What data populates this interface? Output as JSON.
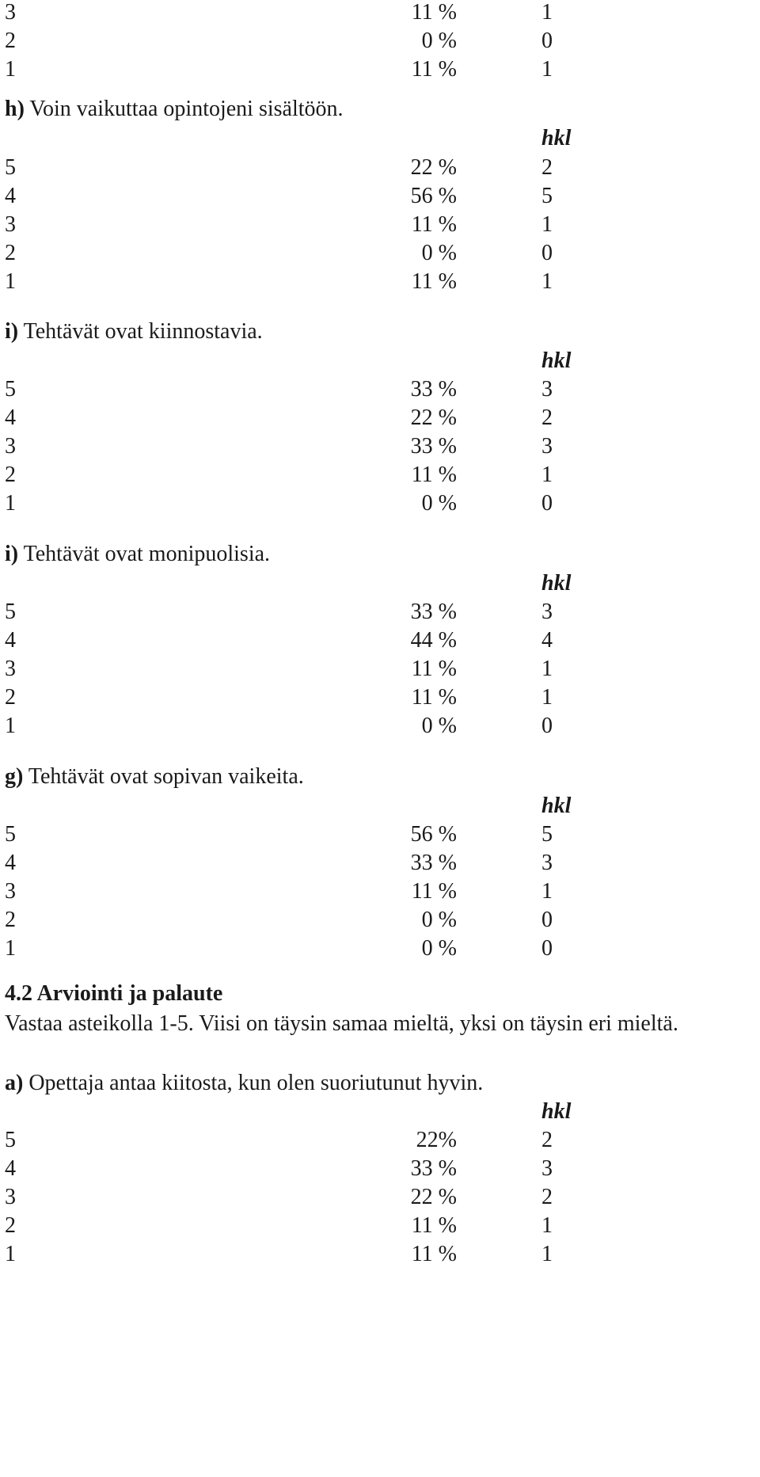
{
  "top_rows": [
    {
      "scale": "3",
      "pct": "11 %",
      "count": "1"
    },
    {
      "scale": "2",
      "pct": "0 %",
      "count": "0"
    },
    {
      "scale": "1",
      "pct": "11 %",
      "count": "1"
    }
  ],
  "questions": [
    {
      "letter": "h)",
      "text": "Voin vaikuttaa opintojeni sisältöön.",
      "hkl": "hkl",
      "rows": [
        {
          "scale": "5",
          "pct": "22 %",
          "count": "2"
        },
        {
          "scale": "4",
          "pct": "56 %",
          "count": "5"
        },
        {
          "scale": "3",
          "pct": "11 %",
          "count": "1"
        },
        {
          "scale": "2",
          "pct": "0 %",
          "count": "0"
        },
        {
          "scale": "1",
          "pct": "11 %",
          "count": "1"
        }
      ]
    },
    {
      "letter": "i)",
      "text": "Tehtävät ovat kiinnostavia.",
      "hkl": "hkl",
      "rows": [
        {
          "scale": "5",
          "pct": "33 %",
          "count": "3"
        },
        {
          "scale": "4",
          "pct": "22 %",
          "count": "2"
        },
        {
          "scale": "3",
          "pct": "33 %",
          "count": "3"
        },
        {
          "scale": "2",
          "pct": "11 %",
          "count": "1"
        },
        {
          "scale": "1",
          "pct": "0 %",
          "count": "0"
        }
      ]
    },
    {
      "letter": "i)",
      "text": "Tehtävät ovat monipuolisia.",
      "hkl": "hkl",
      "rows": [
        {
          "scale": "5",
          "pct": "33 %",
          "count": "3"
        },
        {
          "scale": "4",
          "pct": "44 %",
          "count": "4"
        },
        {
          "scale": "3",
          "pct": "11 %",
          "count": "1"
        },
        {
          "scale": "2",
          "pct": "11 %",
          "count": "1"
        },
        {
          "scale": "1",
          "pct": "0 %",
          "count": "0"
        }
      ]
    },
    {
      "letter": "g)",
      "text": "Tehtävät ovat sopivan vaikeita.",
      "hkl": "hkl",
      "rows": [
        {
          "scale": "5",
          "pct": "56 %",
          "count": "5"
        },
        {
          "scale": "4",
          "pct": "33 %",
          "count": "3"
        },
        {
          "scale": "3",
          "pct": "11 %",
          "count": "1"
        },
        {
          "scale": "2",
          "pct": "0 %",
          "count": "0"
        },
        {
          "scale": "1",
          "pct": "0 %",
          "count": "0"
        }
      ]
    }
  ],
  "section": {
    "heading": "4.2 Arviointi ja palaute",
    "instruction": "Vastaa asteikolla 1-5. Viisi on täysin samaa mieltä, yksi on täysin eri mieltä."
  },
  "last_question": {
    "letter": "a)",
    "text": "Opettaja antaa kiitosta, kun olen suoriutunut hyvin.",
    "hkl": "hkl",
    "rows": [
      {
        "scale": "5",
        "pct": "22%",
        "count": "2"
      },
      {
        "scale": "4",
        "pct": "33 %",
        "count": "3"
      },
      {
        "scale": "3",
        "pct": "22 %",
        "count": "2"
      },
      {
        "scale": "2",
        "pct": "11 %",
        "count": "1"
      },
      {
        "scale": "1",
        "pct": "11 %",
        "count": "1"
      }
    ]
  }
}
